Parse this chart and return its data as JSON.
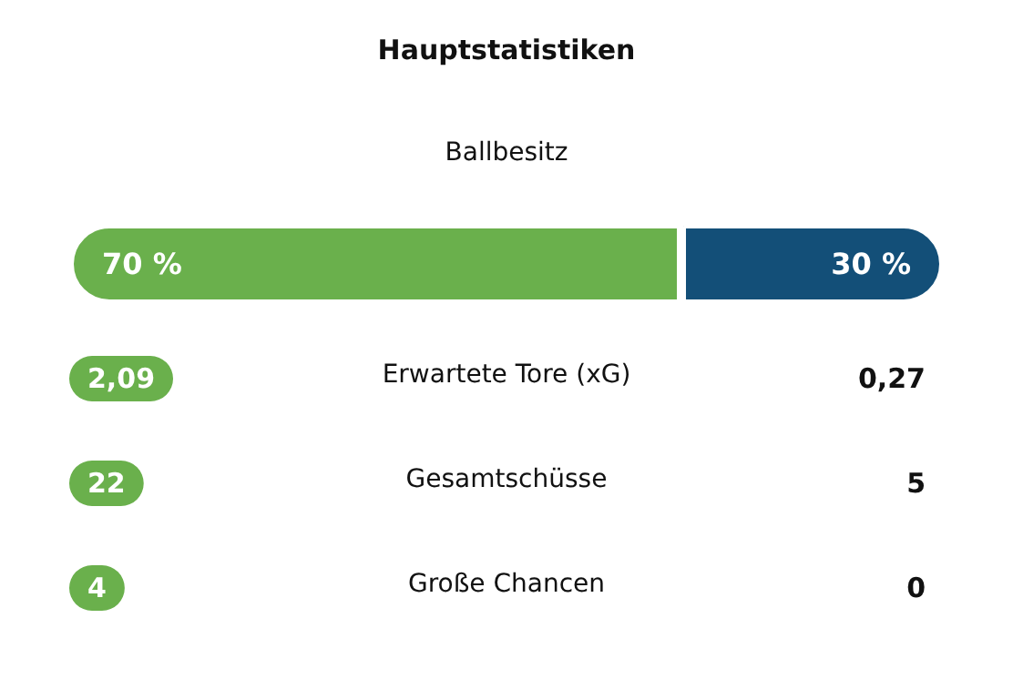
{
  "chart_data": [
    {
      "type": "bar",
      "title": "Hauptstatistiken",
      "orientation": "horizontal",
      "stacked": true,
      "categories": [
        "Ballbesitz"
      ],
      "series": [
        {
          "color": "#6ab04c",
          "values": [
            70
          ],
          "value_labels": [
            "70 %"
          ]
        },
        {
          "color": "#134f78",
          "values": [
            30
          ],
          "value_labels": [
            "30 %"
          ]
        }
      ]
    },
    {
      "type": "other",
      "categories": [
        "Erwartete Tore (xG)",
        "Gesamtschüsse",
        "Große Chancen"
      ],
      "series": [
        {
          "color": "#6ab04c",
          "values": [
            2.09,
            22,
            4
          ],
          "value_labels": [
            "2,09",
            "22",
            "4"
          ]
        },
        {
          "values": [
            0.27,
            5,
            0
          ],
          "value_labels": [
            "0,27",
            "5",
            "0"
          ]
        }
      ]
    }
  ]
}
